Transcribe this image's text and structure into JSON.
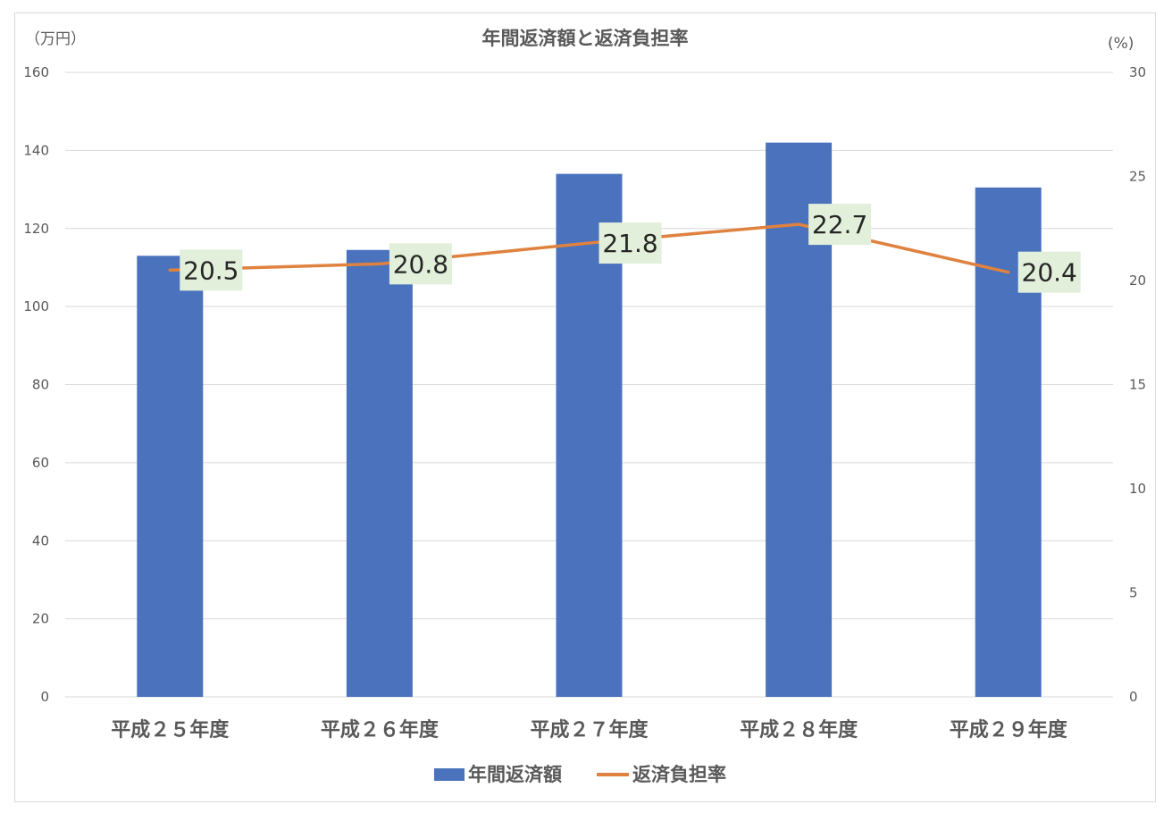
{
  "chart_data": {
    "type": "bar",
    "title": "年間返済額と返済負担率",
    "y_unit_left": "（万円）",
    "y_unit_right": "(%)",
    "categories": [
      "平成２５年度",
      "平成２６年度",
      "平成２７年度",
      "平成２８年度",
      "平成２９年度"
    ],
    "y_left": {
      "min": 0,
      "max": 160,
      "step": 20,
      "ticks": [
        "0",
        "20",
        "40",
        "60",
        "80",
        "100",
        "120",
        "140",
        "160"
      ]
    },
    "y_right": {
      "min": 0,
      "max": 30,
      "step": 5,
      "ticks": [
        "0",
        "5",
        "10",
        "15",
        "20",
        "25",
        "30"
      ]
    },
    "series": [
      {
        "name": "年間返済額",
        "type": "bar",
        "axis": "left",
        "color": "#4a72bd",
        "values": [
          113,
          114.5,
          134,
          142,
          130.5
        ]
      },
      {
        "name": "返済負担率",
        "type": "line",
        "axis": "right",
        "color": "#e0823f",
        "values": [
          20.5,
          20.8,
          21.8,
          22.7,
          20.4
        ],
        "labels": [
          "20.5",
          "20.8",
          "21.8",
          "22.7",
          "20.4"
        ]
      }
    ],
    "grid": true,
    "legend_position": "bottom",
    "data_label_bg": "#e2efda"
  }
}
